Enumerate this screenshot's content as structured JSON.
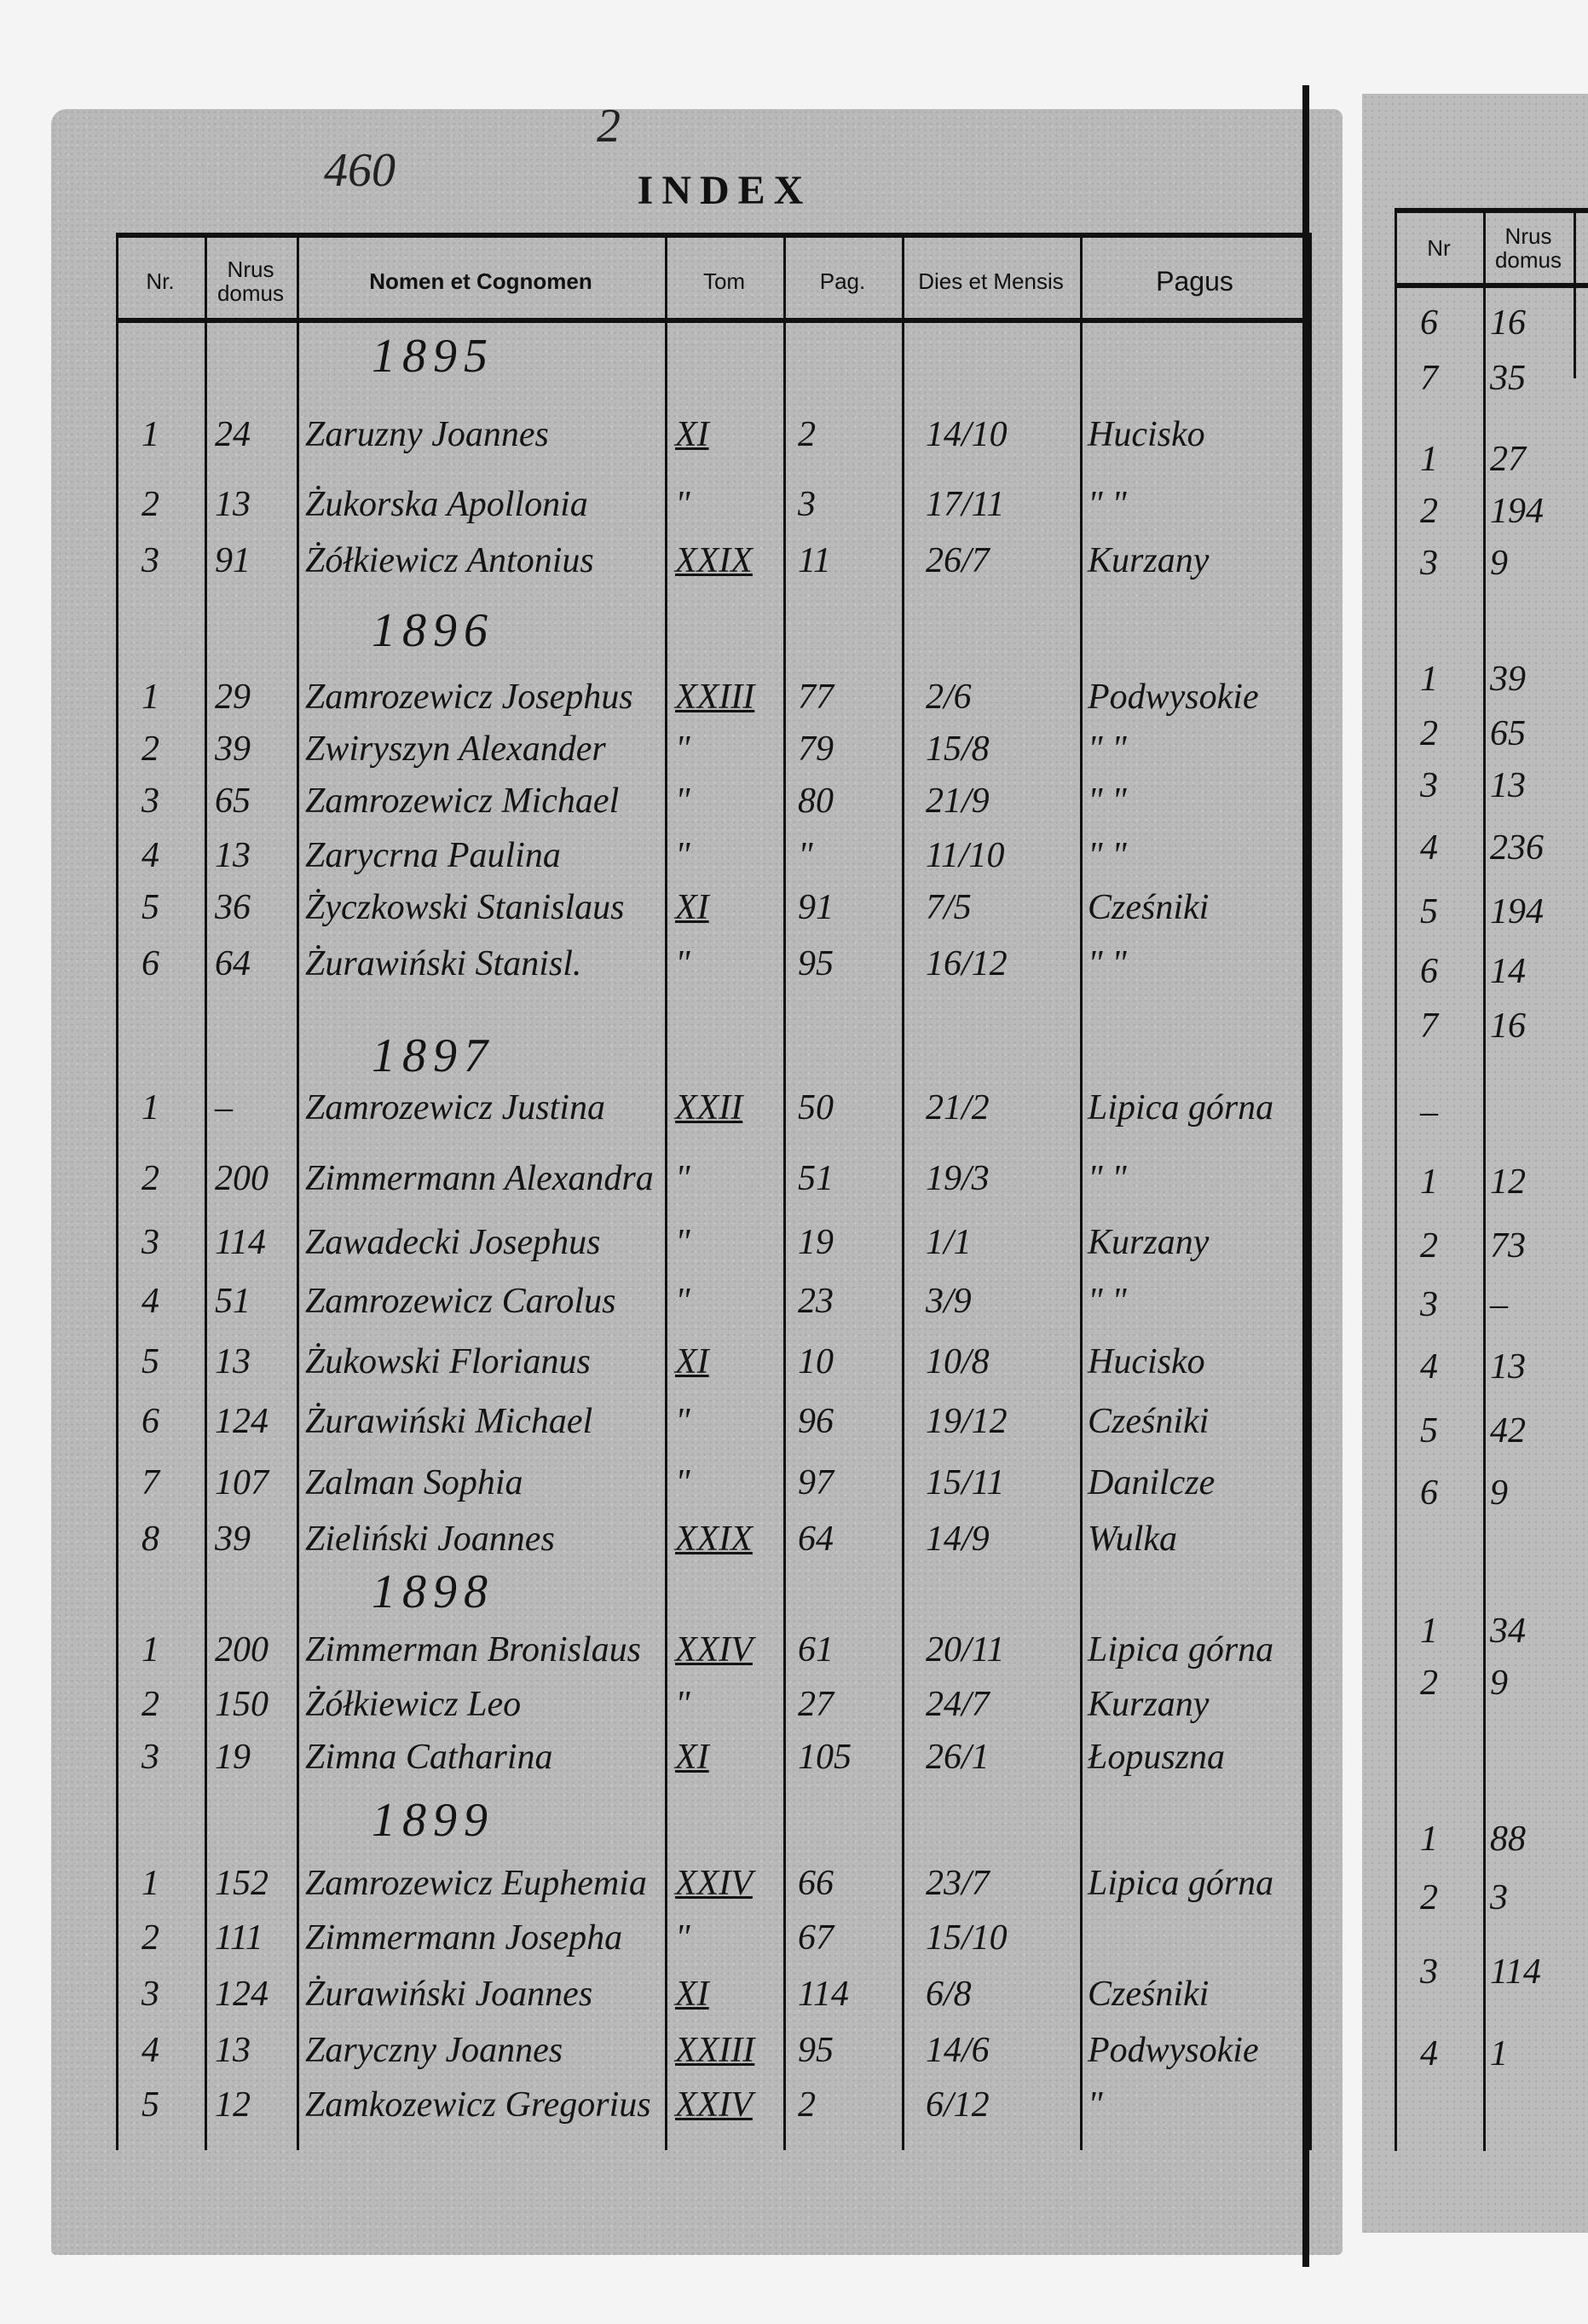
{
  "page_annotations": {
    "folio": "460",
    "page_mark": "2"
  },
  "title": "INDEX",
  "headers": {
    "nr": "Nr.",
    "nrus_domus": "Nrus domus",
    "nomen": "Nomen et Cognomen",
    "tom": "Tom",
    "pag": "Pag.",
    "dies": "Dies et Mensis",
    "pagus": "Pagus"
  },
  "sections": [
    {
      "year": "1895",
      "rows": [
        {
          "nr": "1",
          "domus": "24",
          "nomen": "Zaruzny Joannes",
          "tom": "XI",
          "pag": "2",
          "dies": "14/10",
          "pagus": "Hucisko"
        },
        {
          "nr": "2",
          "domus": "13",
          "nomen": "Żukorska Apollonia",
          "tom": "\"",
          "pag": "3",
          "dies": "17/11",
          "pagus": "\"  \""
        },
        {
          "nr": "3",
          "domus": "91",
          "nomen": "Żółkiewicz Antonius",
          "tom": "XXIX",
          "pag": "11",
          "dies": "26/7",
          "pagus": "Kurzany"
        }
      ]
    },
    {
      "year": "1896",
      "rows": [
        {
          "nr": "1",
          "domus": "29",
          "nomen": "Zamrozewicz Josephus",
          "tom": "XXIII",
          "pag": "77",
          "dies": "2/6",
          "pagus": "Podwysokie"
        },
        {
          "nr": "2",
          "domus": "39",
          "nomen": "Zwiryszyn Alexander",
          "tom": "\"",
          "pag": "79",
          "dies": "15/8",
          "pagus": "\"  \""
        },
        {
          "nr": "3",
          "domus": "65",
          "nomen": "Zamrozewicz Michael",
          "tom": "\"",
          "pag": "80",
          "dies": "21/9",
          "pagus": "\"  \""
        },
        {
          "nr": "4",
          "domus": "13",
          "nomen": "Zarycrna Paulina",
          "tom": "\"",
          "pag": "\"",
          "dies": "11/10",
          "pagus": "\"  \""
        },
        {
          "nr": "5",
          "domus": "36",
          "nomen": "Życzkowski Stanislaus",
          "tom": "XI",
          "pag": "91",
          "dies": "7/5",
          "pagus": "Cześniki"
        },
        {
          "nr": "6",
          "domus": "64",
          "nomen": "Żurawiński Stanisl.",
          "tom": "\"",
          "pag": "95",
          "dies": "16/12",
          "pagus": "\"  \""
        }
      ]
    },
    {
      "year": "1897",
      "rows": [
        {
          "nr": "1",
          "domus": "–",
          "nomen": "Zamrozewicz Justina",
          "tom": "XXII",
          "pag": "50",
          "dies": "21/2",
          "pagus": "Lipica górna"
        },
        {
          "nr": "2",
          "domus": "200",
          "nomen": "Zimmermann Alexandra",
          "tom": "\"",
          "pag": "51",
          "dies": "19/3",
          "pagus": "\"  \""
        },
        {
          "nr": "3",
          "domus": "114",
          "nomen": "Zawadecki Josephus",
          "tom": "\"",
          "pag": "19",
          "dies": "1/1",
          "pagus": "Kurzany"
        },
        {
          "nr": "4",
          "domus": "51",
          "nomen": "Zamrozewicz Carolus",
          "tom": "\"",
          "pag": "23",
          "dies": "3/9",
          "pagus": "\"  \""
        },
        {
          "nr": "5",
          "domus": "13",
          "nomen": "Żukowski Florianus",
          "tom": "XI",
          "pag": "10",
          "dies": "10/8",
          "pagus": "Hucisko"
        },
        {
          "nr": "6",
          "domus": "124",
          "nomen": "Żurawiński Michael",
          "tom": "\"",
          "pag": "96",
          "dies": "19/12",
          "pagus": "Cześniki"
        },
        {
          "nr": "7",
          "domus": "107",
          "nomen": "Zalman Sophia",
          "tom": "\"",
          "pag": "97",
          "dies": "15/11",
          "pagus": "Danilcze"
        },
        {
          "nr": "8",
          "domus": "39",
          "nomen": "Zieliński Joannes",
          "tom": "XXIX",
          "pag": "64",
          "dies": "14/9",
          "pagus": "Wulka"
        }
      ]
    },
    {
      "year": "1898",
      "rows": [
        {
          "nr": "1",
          "domus": "200",
          "nomen": "Zimmerman Bronislaus",
          "tom": "XXIV",
          "pag": "61",
          "dies": "20/11",
          "pagus": "Lipica górna"
        },
        {
          "nr": "2",
          "domus": "150",
          "nomen": "Żółkiewicz Leo",
          "tom": "\"",
          "pag": "27",
          "dies": "24/7",
          "pagus": "Kurzany"
        },
        {
          "nr": "3",
          "domus": "19",
          "nomen": "Zimna Catharina",
          "tom": "XI",
          "pag": "105",
          "dies": "26/1",
          "pagus": "Łopuszna"
        }
      ]
    },
    {
      "year": "1899",
      "rows": [
        {
          "nr": "1",
          "domus": "152",
          "nomen": "Zamrozewicz Euphemia",
          "tom": "XXIV",
          "pag": "66",
          "dies": "23/7",
          "pagus": "Lipica górna"
        },
        {
          "nr": "2",
          "domus": "111",
          "nomen": "Zimmermann Josepha",
          "tom": "\"",
          "pag": "67",
          "dies": "15/10",
          "pagus": ""
        },
        {
          "nr": "3",
          "domus": "124",
          "nomen": "Żurawiński Joannes",
          "tom": "XI",
          "pag": "114",
          "dies": "6/8",
          "pagus": "Cześniki"
        },
        {
          "nr": "4",
          "domus": "13",
          "nomen": "Zaryczny Joannes",
          "tom": "XXIII",
          "pag": "95",
          "dies": "14/6",
          "pagus": "Podwysokie"
        },
        {
          "nr": "5",
          "domus": "12",
          "nomen": "Zamkozewicz Gregorius",
          "tom": "XXIV",
          "pag": "2",
          "dies": "6/12",
          "pagus": "\""
        }
      ]
    }
  ],
  "right_page": {
    "headers": {
      "nr": "Nr",
      "nrus_domus": "Nrus domus"
    },
    "rows": [
      {
        "nr": "6",
        "domus": "16"
      },
      {
        "nr": "7",
        "domus": "35"
      },
      {
        "nr": "1",
        "domus": "27"
      },
      {
        "nr": "2",
        "domus": "194"
      },
      {
        "nr": "3",
        "domus": "9"
      },
      {
        "nr": "1",
        "domus": "39"
      },
      {
        "nr": "2",
        "domus": "65"
      },
      {
        "nr": "3",
        "domus": "13"
      },
      {
        "nr": "4",
        "domus": "236"
      },
      {
        "nr": "5",
        "domus": "194"
      },
      {
        "nr": "6",
        "domus": "14"
      },
      {
        "nr": "7",
        "domus": "16"
      },
      {
        "nr": "–",
        "domus": ""
      },
      {
        "nr": "1",
        "domus": "12"
      },
      {
        "nr": "2",
        "domus": "73"
      },
      {
        "nr": "3",
        "domus": "–"
      },
      {
        "nr": "4",
        "domus": "13"
      },
      {
        "nr": "5",
        "domus": "42"
      },
      {
        "nr": "6",
        "domus": "9"
      },
      {
        "nr": "1",
        "domus": "34"
      },
      {
        "nr": "2",
        "domus": "9"
      },
      {
        "nr": "1",
        "domus": "88"
      },
      {
        "nr": "2",
        "domus": "3"
      },
      {
        "nr": "3",
        "domus": "114"
      },
      {
        "nr": "4",
        "domus": "1"
      }
    ]
  }
}
